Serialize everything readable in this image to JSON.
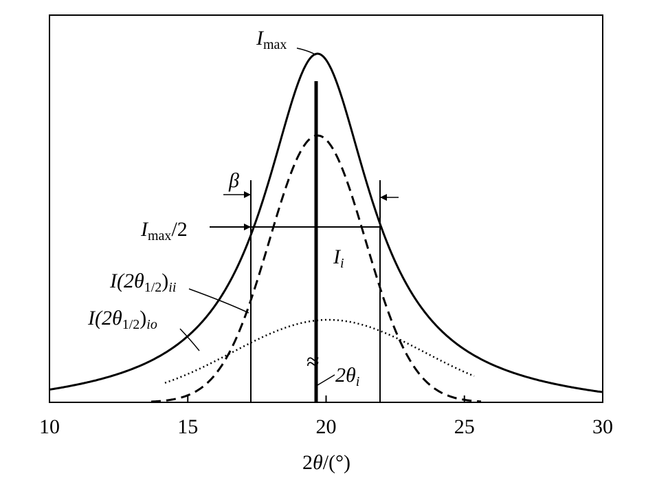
{
  "x_axis": {
    "label": {
      "pre": "2",
      "theta": "θ",
      "post": "/(°)"
    },
    "ticks": [
      "10",
      "15",
      "20",
      "25",
      "30"
    ]
  },
  "annotations": {
    "imax": {
      "main": "I",
      "sub": "max"
    },
    "half": {
      "main": "I",
      "sub": "max",
      "post": "/2"
    },
    "beta": "β",
    "ii": {
      "main": "I(2θ",
      "sub1": "1/2",
      "paren": ")",
      "sub2": "ii"
    },
    "io": {
      "main": "I(2θ",
      "sub1": "1/2",
      "paren": ")",
      "sub2": "io"
    },
    "i": {
      "main": "I",
      "sub": "i"
    },
    "approx": "≈",
    "two_theta_i": {
      "main": "2θ",
      "sub": "i"
    }
  }
}
